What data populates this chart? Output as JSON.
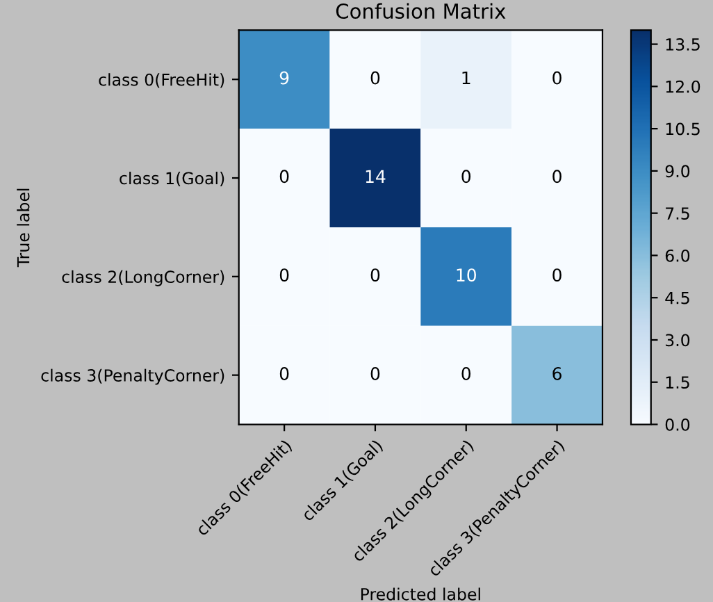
{
  "chart_data": {
    "type": "heatmap",
    "title": "Confusion Matrix",
    "xlabel": "Predicted label",
    "ylabel": "True label",
    "categories": [
      "class 0(FreeHit)",
      "class 1(Goal)",
      "class 2(LongCorner)",
      "class 3(PenaltyCorner)"
    ],
    "y_categories": [
      "class 0(FreeHit)",
      "class 1(Goal)",
      "class 2(LongCorner)",
      "class 3(PenaltyCorner)"
    ],
    "cells": [
      [
        9,
        0,
        1,
        0
      ],
      [
        0,
        14,
        0,
        0
      ],
      [
        0,
        0,
        10,
        0
      ],
      [
        0,
        0,
        0,
        6
      ]
    ],
    "data_labels": true,
    "clim": [
      0,
      14
    ],
    "cticks": [
      {
        "value": 0,
        "label": "0.0"
      },
      {
        "value": 1.5,
        "label": "1.5"
      },
      {
        "value": 3,
        "label": "3.0"
      },
      {
        "value": 4.5,
        "label": "4.5"
      },
      {
        "value": 6,
        "label": "6.0"
      },
      {
        "value": 7.5,
        "label": "7.5"
      },
      {
        "value": 9,
        "label": "9.0"
      },
      {
        "value": 10.5,
        "label": "10.5"
      },
      {
        "value": 12,
        "label": "12.0"
      },
      {
        "value": 13.5,
        "label": "13.5"
      }
    ],
    "grid": false
  }
}
